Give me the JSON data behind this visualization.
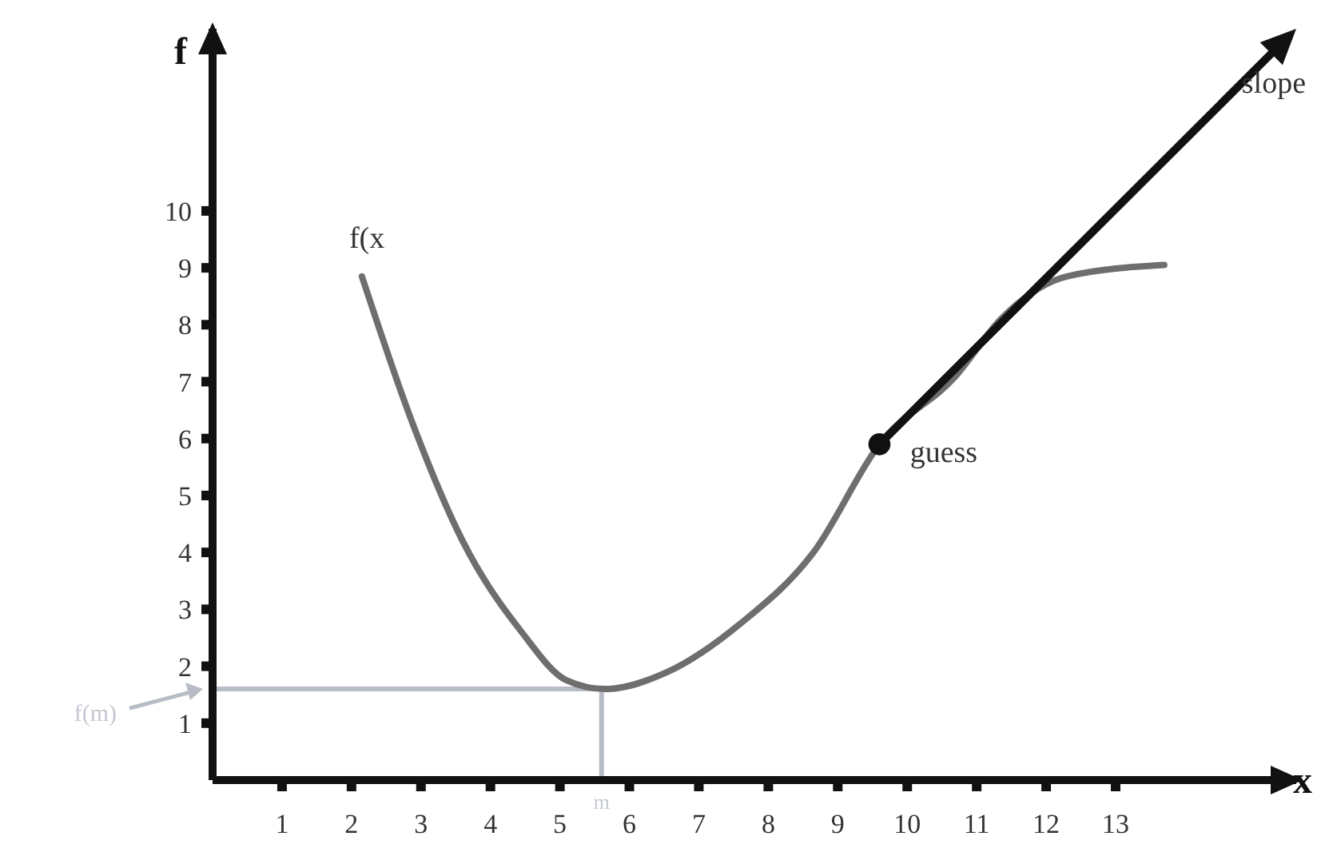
{
  "chart_data": {
    "type": "line",
    "xlabel": "x",
    "ylabel": "f",
    "xlim": [
      0,
      15.6
    ],
    "ylim": [
      0,
      13.2
    ],
    "xticks": [
      1,
      2,
      3,
      4,
      5,
      6,
      7,
      8,
      9,
      10,
      11,
      12,
      13
    ],
    "yticks": [
      1,
      2,
      3,
      4,
      5,
      6,
      7,
      8,
      9,
      10
    ],
    "marker": "none",
    "series": [
      {
        "name": "f(x",
        "color": "#6e6e6e",
        "x": [
          2.15,
          2.9,
          3.6,
          4.45,
          5.1,
          5.65,
          6.55,
          7.6,
          8.65,
          9.6,
          10.7,
          11.35,
          12.3,
          13.7
        ],
        "values": [
          8.85,
          6.2,
          4.2,
          2.6,
          1.75,
          1.6,
          1.9,
          2.75,
          4.0,
          5.9,
          7.1,
          8.1,
          8.85,
          9.05
        ]
      },
      {
        "name": "guess",
        "type": "scatter",
        "marker": "circle",
        "color": "#111111",
        "x": [
          9.6
        ],
        "values": [
          5.9
        ]
      }
    ],
    "annotations": [
      "slope"
    ],
    "ref_lines": [
      {
        "axis": "y",
        "value": 1.6,
        "label": "f(m)",
        "color": "#b8bcc6"
      },
      {
        "axis": "x",
        "value": 5.6,
        "label": "m",
        "color": "#b8bcc6"
      }
    ]
  }
}
